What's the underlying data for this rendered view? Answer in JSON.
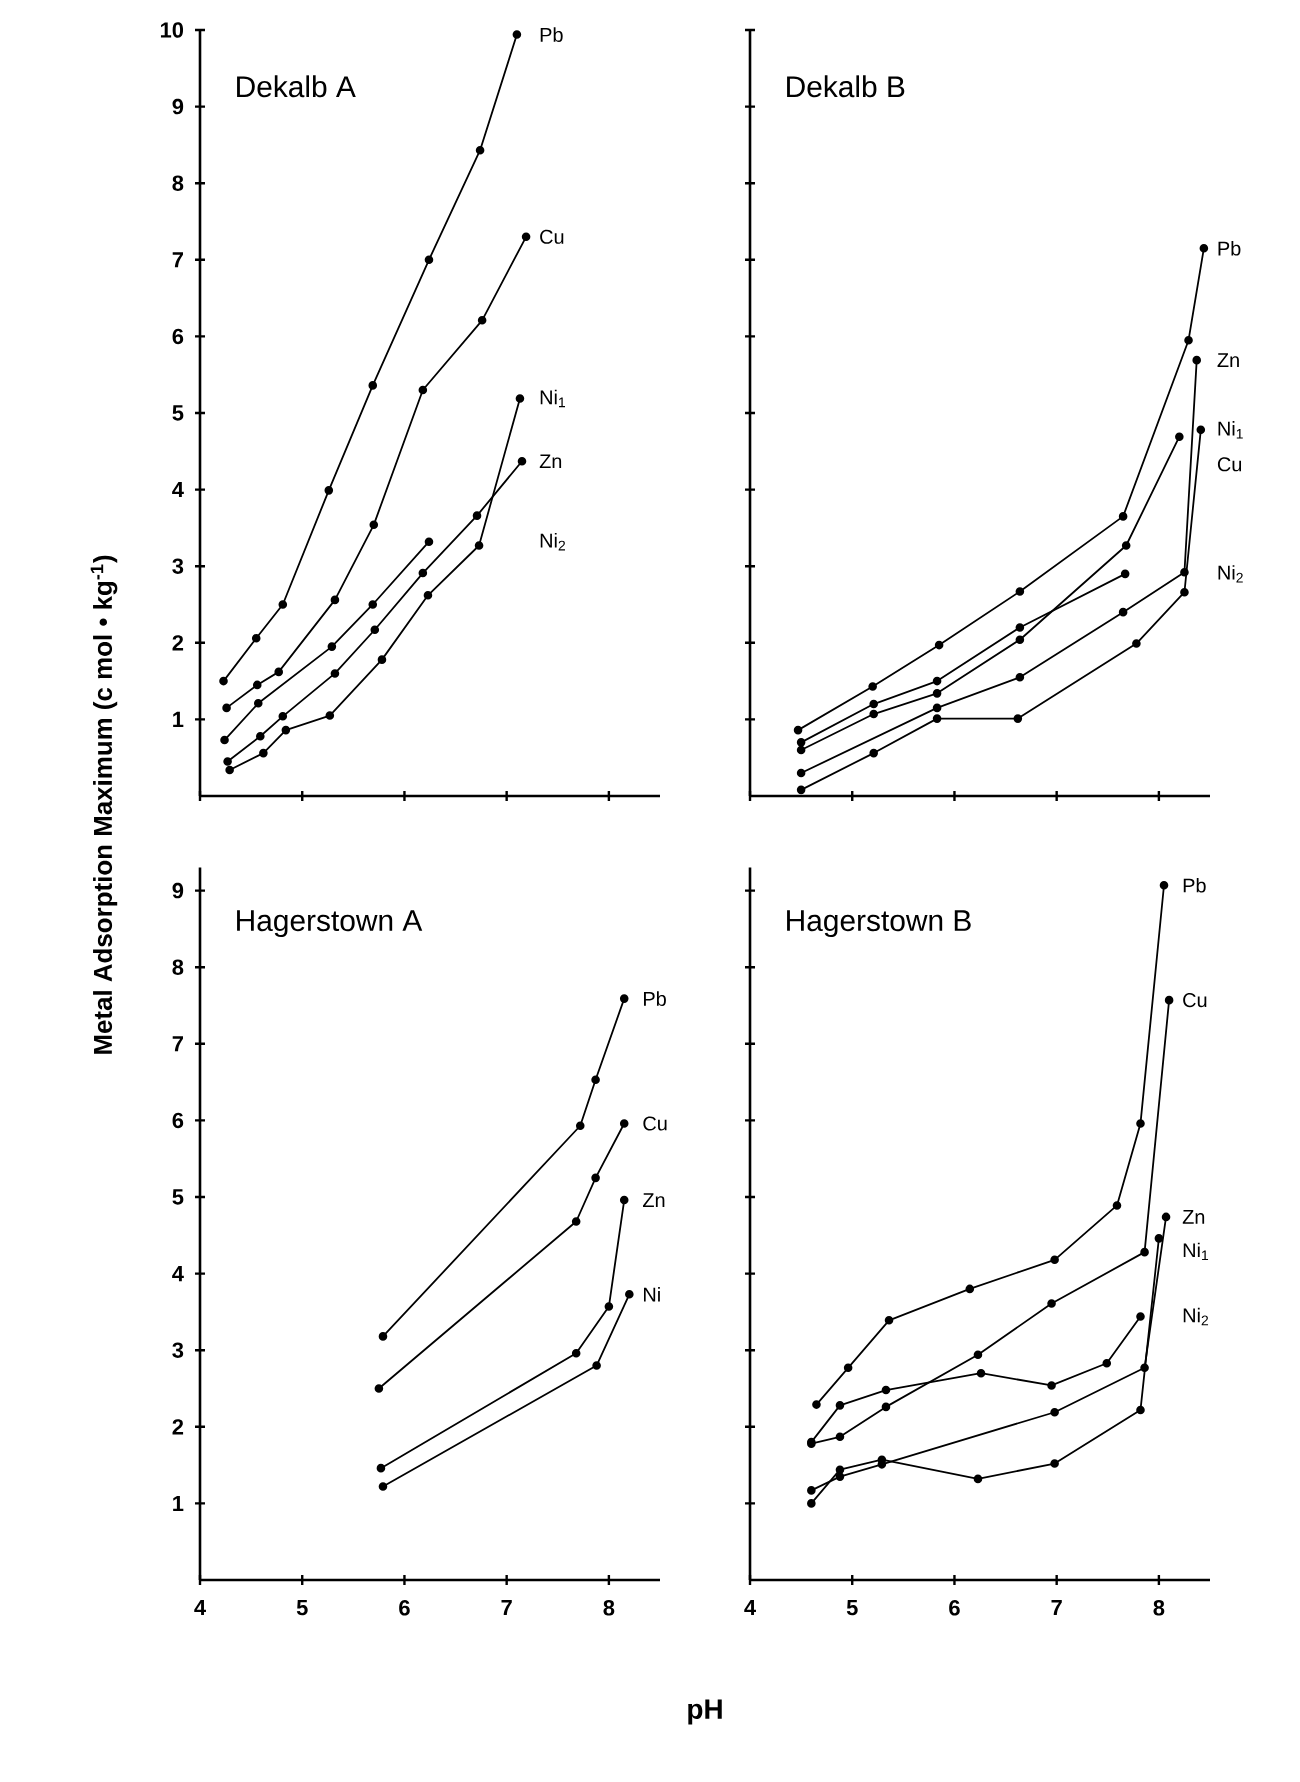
{
  "chart_data": [
    {
      "type": "line",
      "title": "Dekalb A",
      "ylabel": "Metal Adsorption Maximum (c mol • kg$^{-1}$)",
      "xlim": [
        4,
        8.5
      ],
      "ylim": [
        0,
        10
      ],
      "xticks": [
        4,
        5,
        6,
        7,
        8
      ],
      "yticks": [
        1,
        2,
        3,
        4,
        5,
        6,
        7,
        8,
        9,
        10
      ],
      "tick_labels": "y",
      "marker": "circle",
      "line_style": "solid",
      "grid": false,
      "series": [
        {
          "name": "Pb",
          "color": "#000000",
          "x": [
            4.23,
            4.55,
            4.81,
            5.26,
            5.69,
            6.24,
            6.74,
            7.1
          ],
          "values": [
            1.5,
            2.06,
            2.5,
            3.99,
            5.36,
            7.0,
            8.43,
            9.94
          ]
        },
        {
          "name": "Cu",
          "color": "#000000",
          "x": [
            4.26,
            4.56,
            4.77,
            5.32,
            5.7,
            6.18,
            6.76,
            7.19
          ],
          "values": [
            1.15,
            1.45,
            1.62,
            2.56,
            3.54,
            5.3,
            6.21,
            7.3
          ]
        },
        {
          "name": "Ni$_{1}$",
          "color": "#000000",
          "x": [
            4.29,
            4.62,
            4.84,
            5.27,
            5.78,
            6.23,
            6.73,
            7.13
          ],
          "values": [
            0.34,
            0.56,
            0.86,
            1.05,
            1.78,
            2.62,
            3.27,
            5.19
          ]
        },
        {
          "name": "Ni$_{2}$",
          "color": "#000000",
          "x": [
            4.24,
            4.57,
            5.29,
            5.69,
            6.24
          ],
          "values": [
            0.73,
            1.21,
            1.95,
            2.5,
            3.32
          ]
        },
        {
          "name": "Zn",
          "color": "#000000",
          "x": [
            4.27,
            4.59,
            4.81,
            5.32,
            5.71,
            6.18,
            6.71,
            7.15
          ],
          "values": [
            0.45,
            0.78,
            1.04,
            1.6,
            2.17,
            2.91,
            3.66,
            4.37
          ]
        }
      ]
    },
    {
      "type": "line",
      "title": "Dekalb B",
      "xlim": [
        4,
        8.5
      ],
      "ylim": [
        0,
        10
      ],
      "xticks": [
        4,
        5,
        6,
        7,
        8
      ],
      "yticks": [
        1,
        2,
        3,
        4,
        5,
        6,
        7,
        8,
        9,
        10
      ],
      "tick_labels": false,
      "marker": "circle",
      "line_style": "solid",
      "grid": false,
      "series": [
        {
          "name": "Pb",
          "color": "#000000",
          "x": [
            4.47,
            5.2,
            5.85,
            6.64,
            7.65,
            8.29,
            8.44
          ],
          "values": [
            0.86,
            1.43,
            1.97,
            2.67,
            3.65,
            5.95,
            7.15
          ]
        },
        {
          "name": "Zn",
          "color": "#000000",
          "x": [
            4.5,
            5.83,
            6.64,
            7.65,
            8.25,
            8.37
          ],
          "values": [
            0.3,
            1.15,
            1.55,
            2.4,
            2.92,
            5.69
          ]
        },
        {
          "name": "Ni$_{1}$",
          "color": "#000000",
          "x": [
            4.5,
            5.21,
            5.83,
            6.62,
            7.78,
            8.25,
            8.41
          ],
          "values": [
            0.08,
            0.56,
            1.01,
            1.01,
            1.99,
            2.66,
            4.78
          ]
        },
        {
          "name": "Cu",
          "color": "#000000",
          "x": [
            4.5,
            5.21,
            5.83,
            6.64,
            7.68,
            8.2
          ],
          "values": [
            0.6,
            1.07,
            1.34,
            2.04,
            3.27,
            4.69
          ]
        },
        {
          "name": "Ni$_{2}$",
          "color": "#000000",
          "x": [
            4.5,
            5.21,
            5.83,
            6.64,
            7.67
          ],
          "values": [
            0.7,
            1.2,
            1.5,
            2.2,
            2.9
          ]
        }
      ]
    },
    {
      "type": "line",
      "title": "Hagerstown A",
      "xlabel": "pH",
      "xlim": [
        4,
        8.5
      ],
      "ylim": [
        0,
        9.3
      ],
      "xticks": [
        4,
        5,
        6,
        7,
        8
      ],
      "yticks": [
        1,
        2,
        3,
        4,
        5,
        6,
        7,
        8,
        9
      ],
      "marker": "circle",
      "line_style": "solid",
      "grid": false,
      "series": [
        {
          "name": "Pb",
          "color": "#000000",
          "x": [
            5.79,
            7.72,
            7.87,
            8.15
          ],
          "values": [
            3.18,
            5.93,
            6.53,
            7.59
          ]
        },
        {
          "name": "Cu",
          "color": "#000000",
          "x": [
            5.75,
            7.68,
            7.87,
            8.15
          ],
          "values": [
            2.5,
            4.68,
            5.25,
            5.96
          ]
        },
        {
          "name": "Zn",
          "color": "#000000",
          "x": [
            5.77,
            7.68,
            8.0,
            8.15
          ],
          "values": [
            1.46,
            2.96,
            3.57,
            4.96
          ]
        },
        {
          "name": "Ni",
          "color": "#000000",
          "x": [
            5.79,
            7.88,
            8.2
          ],
          "values": [
            1.22,
            2.8,
            3.73
          ]
        }
      ]
    },
    {
      "type": "line",
      "title": "Hagerstown B",
      "xlim": [
        4,
        8.5
      ],
      "ylim": [
        0,
        9.3
      ],
      "xticks": [
        4,
        5,
        6,
        7,
        8
      ],
      "yticks": [
        1,
        2,
        3,
        4,
        5,
        6,
        7,
        8,
        9
      ],
      "tick_labels": "x",
      "marker": "circle",
      "line_style": "solid",
      "grid": false,
      "series": [
        {
          "name": "Pb",
          "color": "#000000",
          "x": [
            4.65,
            4.96,
            5.36,
            6.15,
            6.98,
            7.59,
            7.82,
            8.05
          ],
          "values": [
            2.29,
            2.77,
            3.39,
            3.8,
            4.18,
            4.89,
            5.96,
            9.07
          ]
        },
        {
          "name": "Cu",
          "color": "#000000",
          "x": [
            4.6,
            4.88,
            5.33,
            6.23,
            6.95,
            7.86,
            8.1
          ],
          "values": [
            1.78,
            1.87,
            2.26,
            2.94,
            3.61,
            4.28,
            7.57
          ]
        },
        {
          "name": "Ni$_{2}$",
          "color": "#000000",
          "x": [
            4.6,
            4.88,
            5.33,
            6.26,
            6.95,
            7.49,
            7.82
          ],
          "values": [
            1.8,
            2.28,
            2.48,
            2.7,
            2.54,
            2.83,
            3.44
          ]
        },
        {
          "name": "Zn",
          "color": "#000000",
          "x": [
            4.6,
            4.88,
            5.29,
            6.98,
            7.86,
            8.07
          ],
          "values": [
            1.17,
            1.35,
            1.51,
            2.19,
            2.77,
            4.74
          ]
        },
        {
          "name": "Ni$_{1}$",
          "color": "#000000",
          "x": [
            4.6,
            4.88,
            5.29,
            6.23,
            6.98,
            7.82,
            8.0
          ],
          "values": [
            1.0,
            1.44,
            1.57,
            1.32,
            1.52,
            2.22,
            4.46
          ]
        }
      ]
    }
  ]
}
